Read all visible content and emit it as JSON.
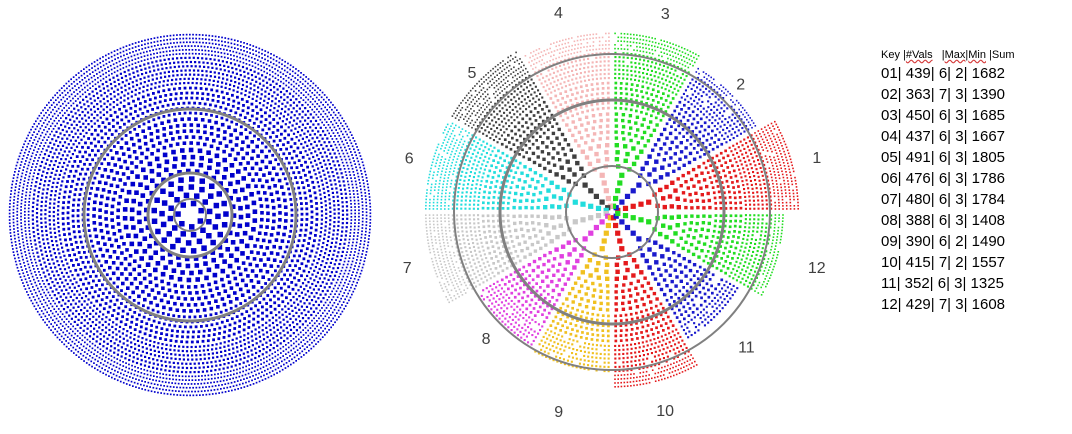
{
  "left_plot": {
    "dot_color": "#0000cc",
    "ring_color": "#808080"
  },
  "right_plot": {
    "ring_color": "#808080",
    "sectors": [
      {
        "label": "1",
        "color": "#e41a1c"
      },
      {
        "label": "2",
        "color": "#1a1acc"
      },
      {
        "label": "3",
        "color": "#22dd22"
      },
      {
        "label": "4",
        "color": "#f4b6b6"
      },
      {
        "label": "5",
        "color": "#404040"
      },
      {
        "label": "6",
        "color": "#22dddd"
      },
      {
        "label": "7",
        "color": "#c8c8c8"
      },
      {
        "label": "8",
        "color": "#e040e0"
      },
      {
        "label": "9",
        "color": "#f0c020"
      },
      {
        "label": "10",
        "color": "#e41a1c"
      },
      {
        "label": "11",
        "color": "#1a1acc"
      },
      {
        "label": "12",
        "color": "#22dd22"
      }
    ]
  },
  "table": {
    "header": {
      "key": "Key",
      "sep1": " |",
      "vals": "#Vals",
      "sep2": "   |",
      "max": "Max",
      "sep3": "|",
      "min": "Min",
      "sep4": " |",
      "sum": "Sum"
    },
    "rows": [
      "01| 439| 6| 2| 1682",
      "02| 363| 7| 3| 1390",
      "03| 450| 6| 3| 1685",
      "04| 437| 6| 3| 1667",
      "05| 491| 6| 3| 1805",
      "06| 476| 6| 3| 1786",
      "07| 480| 6| 3| 1784",
      "08| 388| 6| 3| 1408",
      "09| 390| 6| 2| 1490",
      "10| 415| 7| 2| 1557",
      "11| 352| 6| 3| 1325",
      "12| 429| 7| 3| 1608"
    ]
  }
}
